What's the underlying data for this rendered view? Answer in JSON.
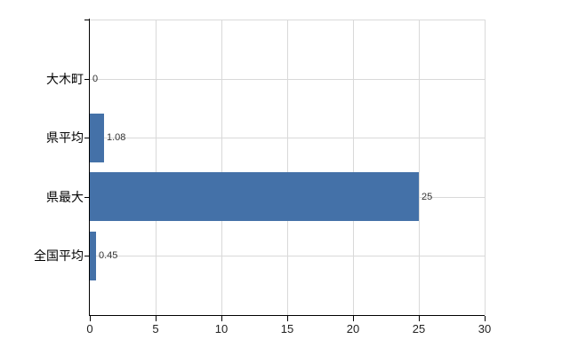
{
  "chart_data": {
    "type": "bar",
    "orientation": "horizontal",
    "categories": [
      "大木町",
      "県平均",
      "県最大",
      "全国平均"
    ],
    "values": [
      0,
      1.08,
      25,
      0.45
    ],
    "value_labels": [
      "0",
      "1.08",
      "25",
      "0.45"
    ],
    "title": "",
    "xlabel": "",
    "ylabel": "",
    "xlim": [
      0,
      30
    ],
    "x_ticks": [
      "0",
      "5",
      "10",
      "15",
      "20",
      "25",
      "30"
    ],
    "grid": true,
    "legend": "none",
    "bar_color": "#4471a8",
    "gridline_color": "#d9d9d9",
    "axis_color": "#000000",
    "category_label_color": "#000000",
    "value_label_color": "#333333",
    "tick_label_color": "#222222",
    "background_color": "#ffffff"
  }
}
